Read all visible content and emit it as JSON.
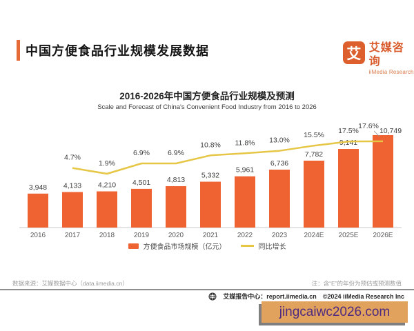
{
  "header": {
    "title": "中国方便食品行业规模发展数据"
  },
  "logo": {
    "glyph": "艾",
    "name_cn": "艾媒咨询",
    "name_en": "iiMedia Research"
  },
  "chart_data": {
    "type": "bar",
    "title": "2016-2026年中国方便食品行业规模及预测",
    "subtitle": "Scale and Forecast of China's Convenient Food Industry from 2016 to 2026",
    "categories": [
      "2016",
      "2017",
      "2018",
      "2019",
      "2020",
      "2021",
      "2022",
      "2023",
      "2024E",
      "2025E",
      "2026E"
    ],
    "series": [
      {
        "name": "方便食品市场规模（亿元）",
        "type": "bar",
        "values": [
          3948,
          4133,
          4210,
          4501,
          4813,
          5332,
          5961,
          6736,
          7782,
          9141,
          10749
        ],
        "labels": [
          "3,948",
          "4,133",
          "4,210",
          "4,501",
          "4,813",
          "5,332",
          "5,961",
          "6,736",
          "7,782",
          "9,141",
          "10,749"
        ],
        "color": "#EE6331"
      },
      {
        "name": "同比增长",
        "type": "line",
        "unit": "%",
        "values": [
          null,
          4.7,
          1.9,
          6.9,
          6.9,
          10.8,
          11.8,
          13.0,
          15.5,
          17.5,
          17.6
        ],
        "labels": [
          "",
          "4.7%",
          "1.9%",
          "6.9%",
          "6.9%",
          "10.8%",
          "11.8%",
          "13.0%",
          "15.5%",
          "17.5%",
          "17.6%"
        ],
        "color": "#E6C645"
      }
    ],
    "legend_position": "bottom",
    "grid": false,
    "value_axis_hidden": true
  },
  "footer": {
    "source_left": "数据来源：艾媒数据中心（data.iimedia.cn）",
    "note_right": "注：含“E”的年份为预估或预测数值",
    "report_center": "艾媒报告中心：report.iimedia.cn",
    "copyright": "©2024   iiMedia Research Inc"
  },
  "watermark": "jingcaiwc2026.com",
  "colors": {
    "bar": "#EE6331",
    "line": "#E6C645",
    "accent": "#E66A38",
    "logo": "#DD5F2D",
    "watermark_bg": "#E0A25D",
    "watermark_text": "#4E2B81"
  }
}
